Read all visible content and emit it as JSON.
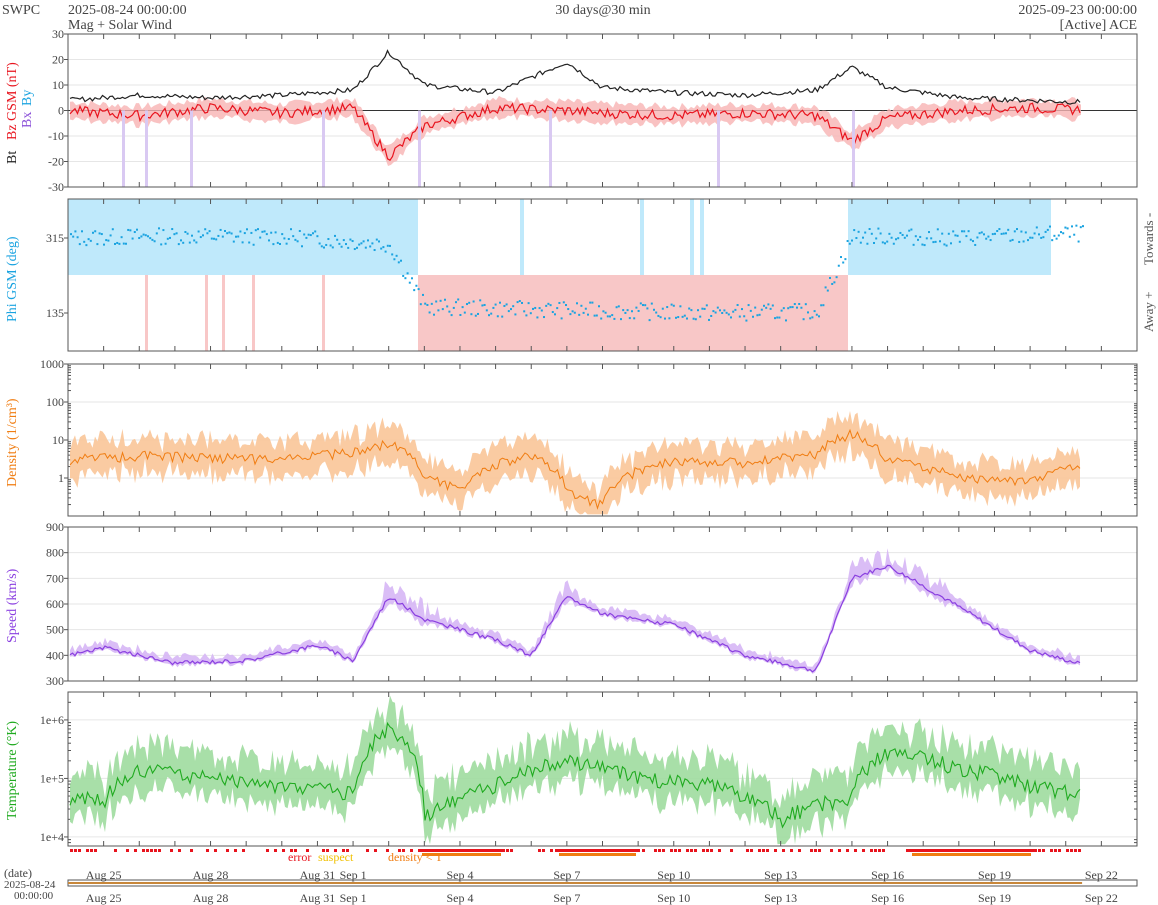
{
  "header": {
    "agency": "SWPC",
    "start": "2025-08-24 00:00:00",
    "subtitle": "Mag + Solar Wind",
    "span": "30 days@30 min",
    "end": "2025-09-23 00:00:00",
    "source": "[Active] ACE"
  },
  "colors": {
    "bt": "#222222",
    "bz": "#e8141e",
    "by": "#1aa3e0",
    "bx": "#8a4fd8",
    "phi": "#1aa3e0",
    "towards_band": "#bfe9fb",
    "away_band": "#f8c7c7",
    "density": "#f07d12",
    "density_band": "#f9c598",
    "speed": "#8a3fe0",
    "speed_band": "#d6b6f5",
    "temp": "#1faa1f",
    "temp_band": "#9edb9e",
    "error": "#e8141e",
    "suspect": "#f0c000",
    "density_lt_t": "#f07d12",
    "grid": "#e6e6e6",
    "axis": "#555555"
  },
  "legend": {
    "error": "error",
    "suspect": "suspect",
    "density_lt_t": "density < T"
  },
  "date_axis": {
    "label": "(date)",
    "start_date": "2025-08-24",
    "start_time": "00:00:00",
    "ticks": [
      "Aug 25",
      "Aug 28",
      "Aug 31",
      "Sep 1",
      "Sep 4",
      "Sep 7",
      "Sep 10",
      "Sep 13",
      "Sep 16",
      "Sep 19",
      "Sep 22"
    ]
  },
  "chart_data": [
    {
      "type": "line",
      "ylabel_parts": [
        "Bt",
        "Bz GSM (nT)",
        "Bx",
        "By"
      ],
      "ylim": [
        -30,
        30
      ],
      "yticks": [
        "30",
        "20",
        "10",
        "0",
        "-10",
        "-20",
        "-30"
      ],
      "grid": true,
      "x_dates": [
        "2025-08-24",
        "2025-08-26",
        "2025-08-28",
        "2025-08-30",
        "2025-09-01",
        "2025-09-02",
        "2025-09-03",
        "2025-09-05",
        "2025-09-07",
        "2025-09-08",
        "2025-09-10",
        "2025-09-12",
        "2025-09-14",
        "2025-09-15",
        "2025-09-16",
        "2025-09-18",
        "2025-09-20",
        "2025-09-22"
      ],
      "series": [
        {
          "name": "Bt",
          "values": [
            4,
            6,
            5,
            6,
            8,
            23,
            10,
            7,
            19,
            9,
            7,
            6,
            8,
            17,
            9,
            5,
            4,
            3
          ]
        },
        {
          "name": "Bz GSM",
          "values": [
            0,
            -2,
            1,
            -1,
            1,
            -18,
            -6,
            1,
            0,
            -1,
            -2,
            -1,
            -2,
            -12,
            -3,
            0,
            1,
            0
          ]
        }
      ]
    },
    {
      "type": "scatter",
      "ylabel": "Phi GSM (deg)",
      "yticks": [
        "315",
        "135"
      ],
      "right_labels": [
        "Towards -",
        "Away +"
      ],
      "x_dates": [
        "2025-08-24",
        "2025-08-27",
        "2025-08-30",
        "2025-09-02",
        "2025-09-03",
        "2025-09-05",
        "2025-09-08",
        "2025-09-11",
        "2025-09-14",
        "2025-09-15",
        "2025-09-18",
        "2025-09-21"
      ],
      "values": [
        315,
        320,
        318,
        300,
        150,
        145,
        140,
        135,
        138,
        320,
        315,
        325
      ]
    },
    {
      "type": "line",
      "ylabel": "Density (1/cm³)",
      "scale": "log",
      "yticks": [
        "1000",
        "100",
        "10",
        "1"
      ],
      "ylim": [
        0.1,
        1000
      ],
      "x_dates": [
        "2025-08-24",
        "2025-08-26",
        "2025-08-28",
        "2025-08-30",
        "2025-09-01",
        "2025-09-02",
        "2025-09-03",
        "2025-09-04",
        "2025-09-06",
        "2025-09-07",
        "2025-09-08",
        "2025-09-10",
        "2025-09-12",
        "2025-09-14",
        "2025-09-15",
        "2025-09-16",
        "2025-09-18",
        "2025-09-20",
        "2025-09-22"
      ],
      "values": [
        3,
        4,
        3.5,
        3,
        5,
        8,
        1,
        0.5,
        4,
        0.4,
        0.2,
        3,
        2.5,
        4,
        15,
        3,
        1,
        0.8,
        2.5
      ]
    },
    {
      "type": "line",
      "ylabel": "Speed (km/s)",
      "ylim": [
        300,
        900
      ],
      "yticks": [
        "900",
        "800",
        "700",
        "600",
        "500",
        "400",
        "300"
      ],
      "x_dates": [
        "2025-08-24",
        "2025-08-25",
        "2025-08-27",
        "2025-08-29",
        "2025-08-31",
        "2025-09-01",
        "2025-09-02",
        "2025-09-03",
        "2025-09-05",
        "2025-09-06",
        "2025-09-07",
        "2025-09-08",
        "2025-09-10",
        "2025-09-12",
        "2025-09-14",
        "2025-09-15",
        "2025-09-16",
        "2025-09-18",
        "2025-09-20",
        "2025-09-22"
      ],
      "values": [
        400,
        430,
        370,
        380,
        440,
        380,
        630,
        540,
        460,
        400,
        630,
        560,
        520,
        400,
        340,
        700,
        750,
        590,
        420,
        345
      ]
    },
    {
      "type": "line",
      "ylabel": "Temperature (°K)",
      "scale": "log",
      "yticks": [
        "1e+6",
        "1e+5",
        "1e+4"
      ],
      "ylim": [
        7000,
        3000000
      ],
      "x_dates": [
        "2025-08-24",
        "2025-08-25",
        "2025-08-26",
        "2025-08-28",
        "2025-08-30",
        "2025-09-01",
        "2025-09-02",
        "2025-09-03",
        "2025-09-05",
        "2025-09-07",
        "2025-09-09",
        "2025-09-11",
        "2025-09-13",
        "2025-09-15",
        "2025-09-16",
        "2025-09-18",
        "2025-09-20",
        "2025-09-22"
      ],
      "values": [
        50000,
        40000,
        150000,
        100000,
        70000,
        60000,
        700000,
        20000,
        80000,
        200000,
        100000,
        80000,
        20000,
        50000,
        300000,
        150000,
        80000,
        40000
      ]
    }
  ]
}
